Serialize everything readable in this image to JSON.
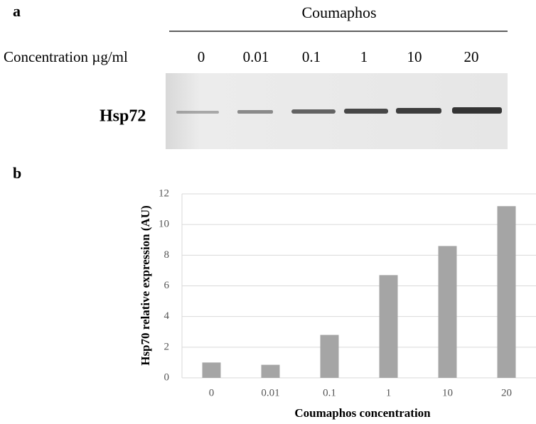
{
  "blot": {
    "panel_label": "a",
    "treatment": "Coumaphos",
    "concentration_label": "Concentration µg/ml",
    "lanes": [
      "0",
      "0.01",
      "0.1",
      "1",
      "10",
      "20"
    ],
    "protein": "Hsp72"
  },
  "panel_b_label": "b",
  "chart_data": {
    "type": "bar",
    "x_label": "Coumaphos concentration",
    "y_label": "Hsp70 relative expression (AU)",
    "categories": [
      "0",
      "0.01",
      "0.1",
      "1",
      "10",
      "20"
    ],
    "values": [
      1.0,
      0.85,
      2.8,
      6.7,
      8.6,
      11.2
    ],
    "color": "#a5a5a5",
    "ylim": [
      0,
      12
    ],
    "yticks": [
      0,
      2,
      4,
      6,
      8,
      10,
      12
    ],
    "grid": true
  }
}
